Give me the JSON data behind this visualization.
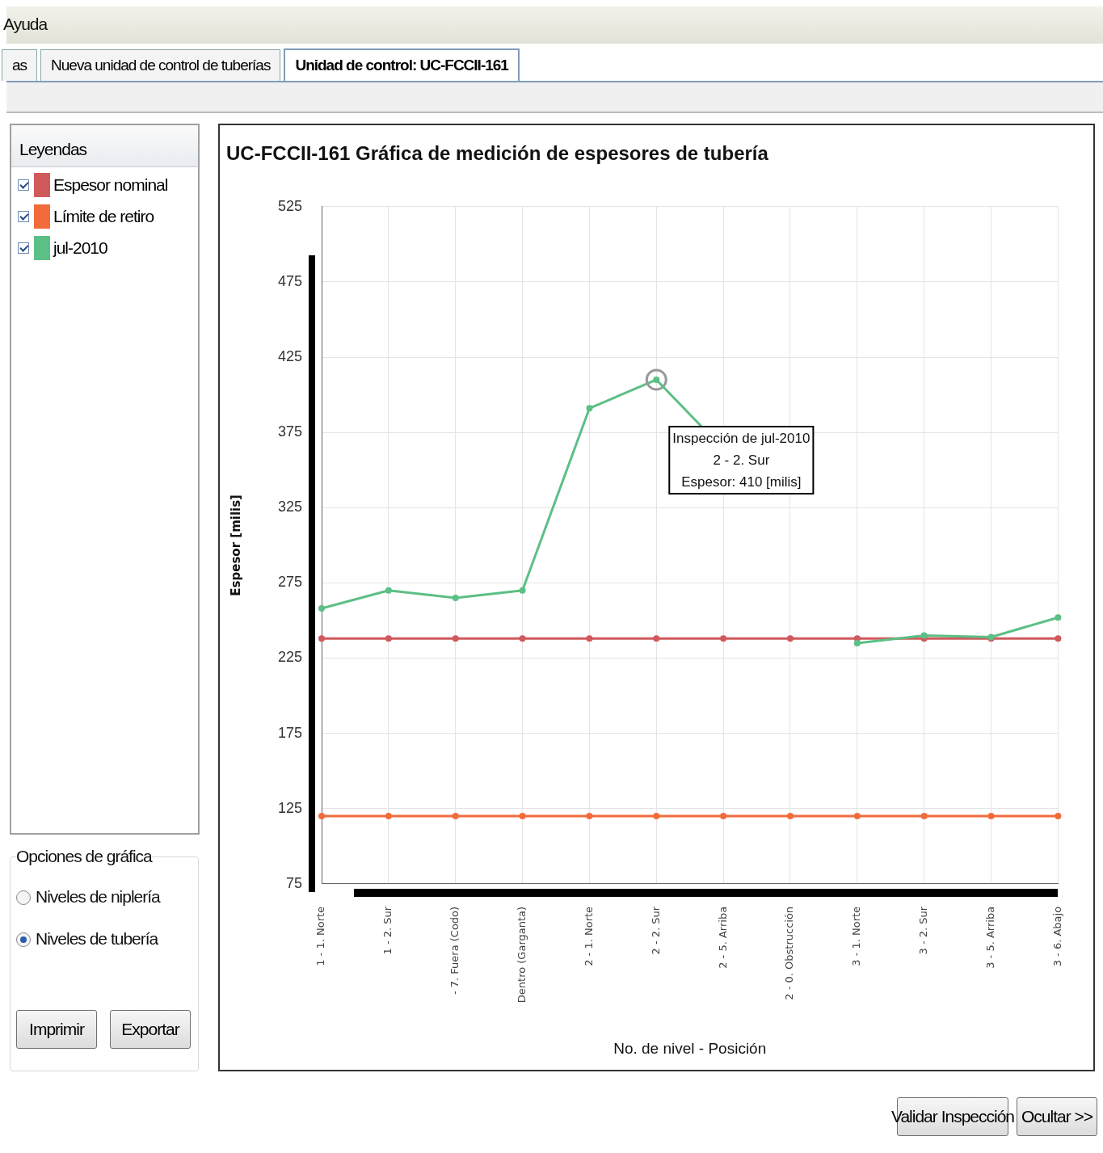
{
  "chart_data": [
    {
      "type": "line",
      "title": "UC-FCCII-161 Gráfica de medición de espesores de tubería",
      "xlabel": "No. de nivel - Posición",
      "ylabel": "Espesor [milis]",
      "legend_title": "Leyendas",
      "legend": "left",
      "grid": true,
      "marker": "circle",
      "line_style": "solid",
      "categories": [
        "1 - 1. Norte",
        "1 - 2. Sur",
        "- 7. Fuera (Codo)",
        "Dentro (Garganta)",
        "2 - 1. Norte",
        "2 - 2. Sur",
        "2 - 5. Arriba",
        "2 - 0. Obstrucción",
        "3 - 1. Norte",
        "3 - 2. Sur",
        "3 - 5. Arriba",
        "3 - 6. Abajo"
      ],
      "ylim": [
        75,
        525
      ],
      "yticks": [
        75,
        125,
        175,
        225,
        275,
        325,
        375,
        425,
        475,
        525
      ],
      "series": [
        {
          "name": "Espesor nominal",
          "color": "#d0595c",
          "values": [
            238,
            238,
            238,
            238,
            238,
            238,
            238,
            238,
            238,
            238,
            238,
            238
          ]
        },
        {
          "name": "Límite de retiro",
          "color": "#f26b3a",
          "values": [
            120,
            120,
            120,
            120,
            120,
            120,
            120,
            120,
            120,
            120,
            120,
            120
          ]
        },
        {
          "name": "jul-2010",
          "color": "#5cbf85",
          "values": [
            258,
            270,
            265,
            270,
            391,
            410,
            null,
            null,
            235,
            240,
            239,
            252
          ]
        }
      ],
      "annotations": [
        {
          "text": "Inspección de jul-2010\n2 - 2. Sur\nEspesor: 410 [milis]",
          "x": "2 - 2. Sur",
          "y": 410
        }
      ]
    },
    {
      "type": "other",
      "annotations": [
        "Ayuda",
        "as",
        "Nueva unidad de control de tuberías",
        "Unidad de control: UC-FCCII-161",
        "Opciones de gráfica",
        "Niveles de niplería",
        "Niveles de tubería",
        "Imprimir",
        "Exportar",
        "Validar Inspección",
        "Ocultar >>"
      ]
    }
  ]
}
